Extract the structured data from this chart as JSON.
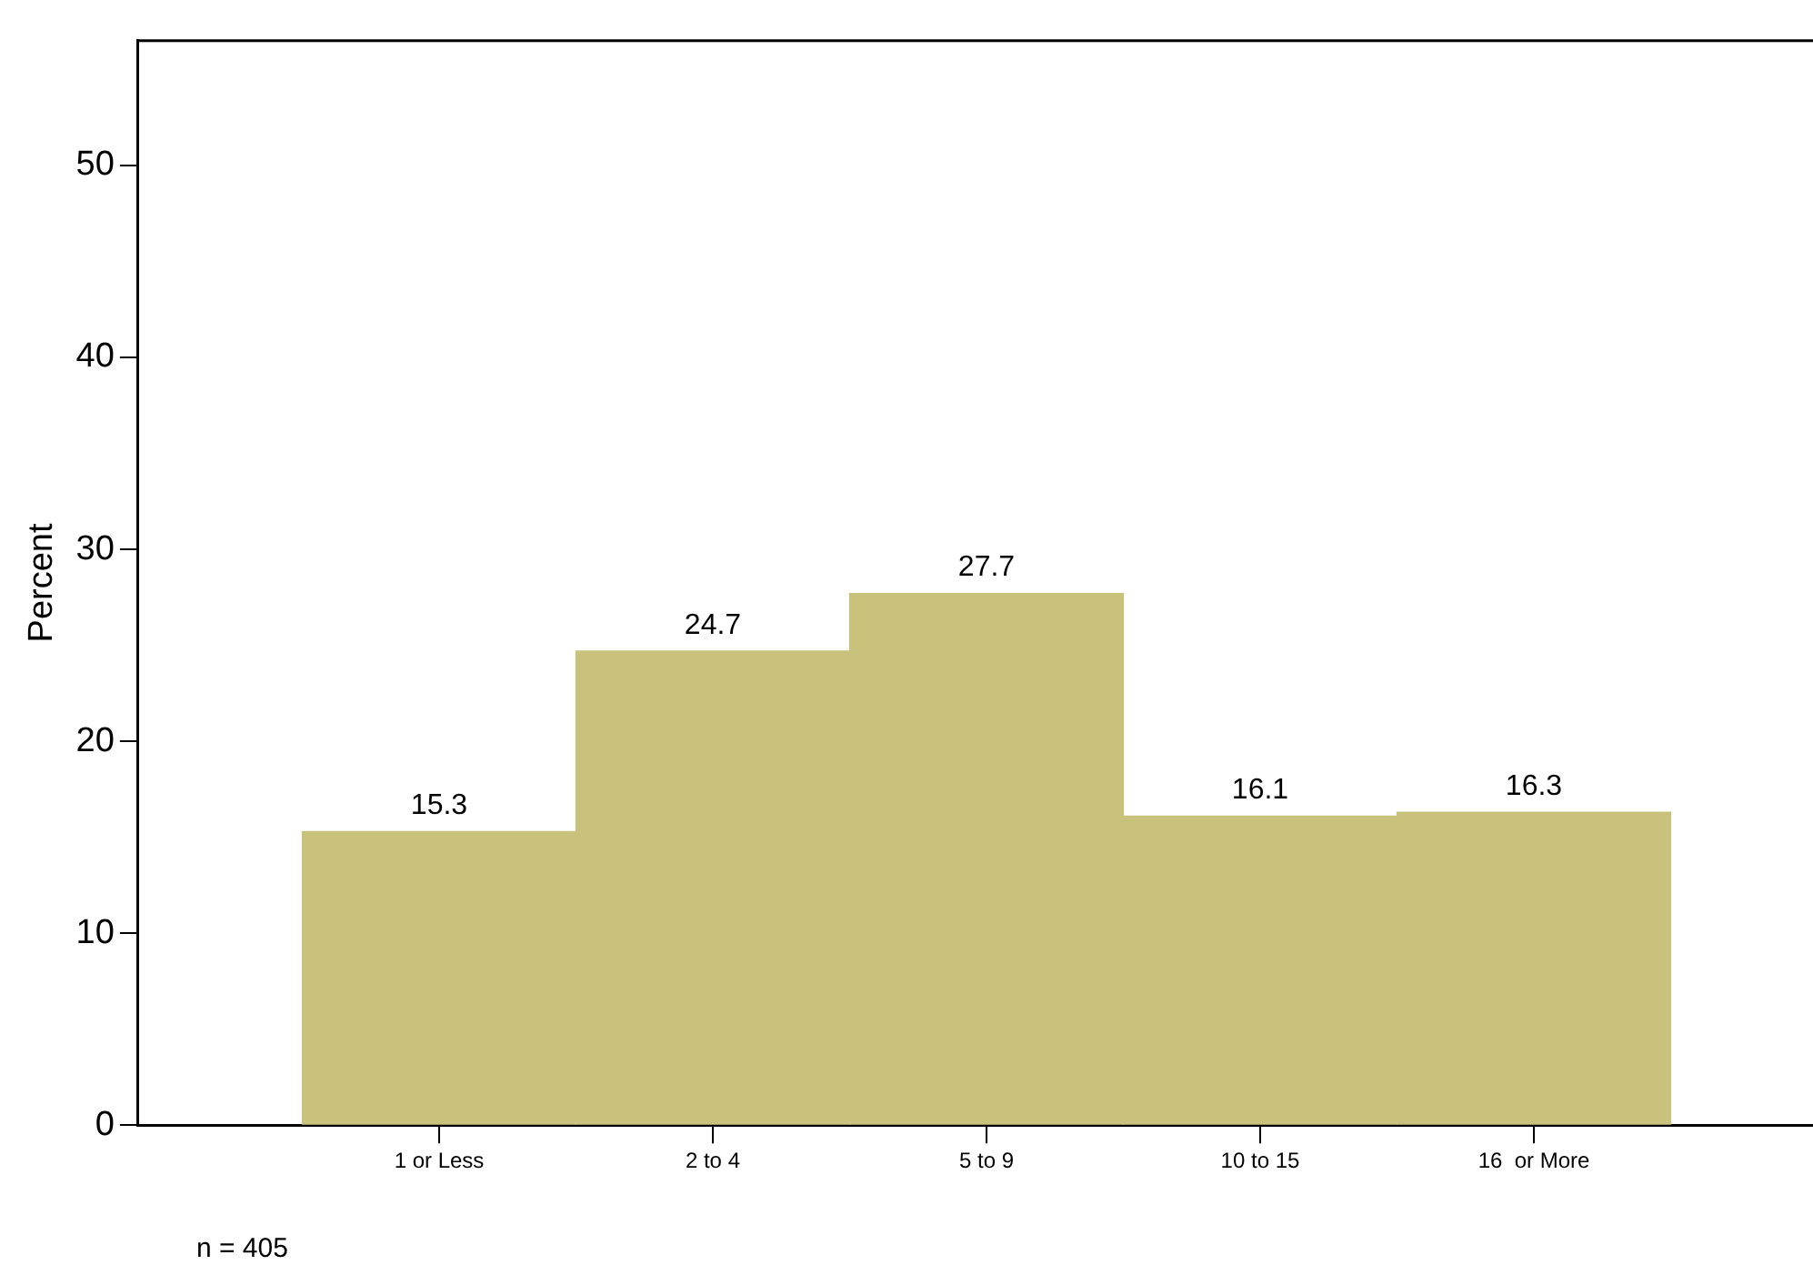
{
  "chart_data": {
    "type": "bar",
    "ylabel": "Percent",
    "categories": [
      "1 or Less",
      "2 to 4",
      "5 to 9",
      "10 to 15",
      "16  or More"
    ],
    "values": [
      15.3,
      24.7,
      27.7,
      16.1,
      16.3
    ],
    "color": "#c9c27d",
    "ylim": [
      0,
      56.5
    ],
    "yticks": [
      0,
      10,
      20,
      30,
      40,
      50
    ],
    "grid": false,
    "legend": false,
    "data_labels": true,
    "annotations": [
      "n = 405"
    ]
  }
}
